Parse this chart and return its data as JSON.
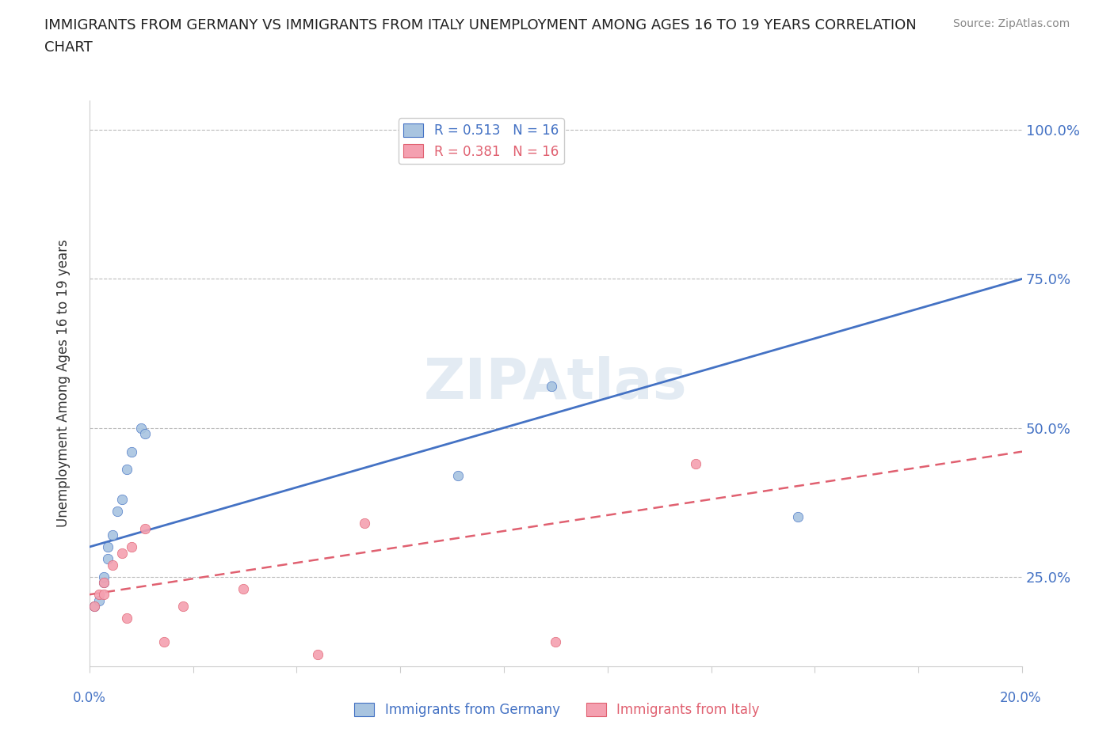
{
  "title_line1": "IMMIGRANTS FROM GERMANY VS IMMIGRANTS FROM ITALY UNEMPLOYMENT AMONG AGES 16 TO 19 YEARS CORRELATION",
  "title_line2": "CHART",
  "source": "Source: ZipAtlas.com",
  "ylabel": "Unemployment Among Ages 16 to 19 years",
  "germany_R": 0.513,
  "germany_N": 16,
  "italy_R": 0.381,
  "italy_N": 16,
  "germany_color": "#a8c4e0",
  "italy_color": "#f4a0b0",
  "germany_line_color": "#4472c4",
  "italy_line_color": "#e06070",
  "watermark": "ZIPAtlas",
  "germany_x": [
    0.001,
    0.002,
    0.003,
    0.003,
    0.004,
    0.004,
    0.005,
    0.006,
    0.007,
    0.008,
    0.009,
    0.011,
    0.012,
    0.079,
    0.099,
    0.152
  ],
  "germany_y": [
    0.2,
    0.21,
    0.24,
    0.25,
    0.28,
    0.3,
    0.32,
    0.36,
    0.38,
    0.43,
    0.46,
    0.5,
    0.49,
    0.42,
    0.57,
    0.35
  ],
  "italy_x": [
    0.001,
    0.002,
    0.003,
    0.003,
    0.005,
    0.007,
    0.008,
    0.009,
    0.012,
    0.016,
    0.02,
    0.033,
    0.049,
    0.059,
    0.1,
    0.13
  ],
  "italy_y": [
    0.2,
    0.22,
    0.24,
    0.22,
    0.27,
    0.29,
    0.18,
    0.3,
    0.33,
    0.14,
    0.2,
    0.23,
    0.12,
    0.34,
    0.14,
    0.44
  ],
  "xlim": [
    0.0,
    0.2
  ],
  "ylim": [
    0.1,
    1.05
  ],
  "ytick_vals": [
    0.25,
    0.5,
    0.75,
    1.0
  ],
  "ytick_labels": [
    "25.0%",
    "50.0%",
    "75.0%",
    "100.0%"
  ],
  "germany_line_x": [
    0.0,
    0.2
  ],
  "germany_line_y": [
    0.3,
    0.75
  ],
  "italy_line_x": [
    0.0,
    0.2
  ],
  "italy_line_y": [
    0.22,
    0.46
  ]
}
